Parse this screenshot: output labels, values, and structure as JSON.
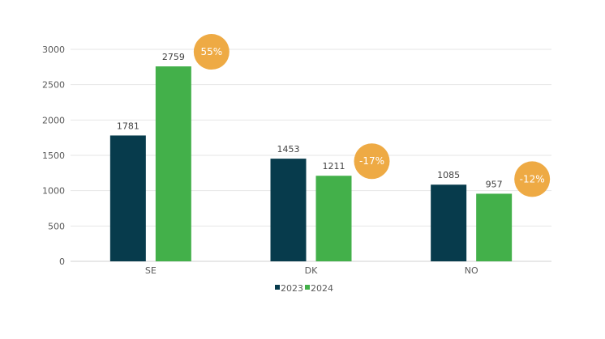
{
  "chart_data": {
    "type": "bar",
    "categories": [
      "SE",
      "DK",
      "NO"
    ],
    "series": [
      {
        "name": "2023",
        "color": "#073b4c",
        "values": [
          1781,
          1453,
          1085
        ]
      },
      {
        "name": "2024",
        "color": "#43b04a",
        "values": [
          2759,
          1211,
          957
        ]
      }
    ],
    "changes": [
      "55%",
      "-17%",
      "-12%"
    ],
    "change_color": "#eeaa44",
    "ylim": [
      0,
      3000
    ],
    "yticks": [
      0,
      500,
      1000,
      1500,
      2000,
      2500,
      3000
    ],
    "grid": true,
    "legend_position": "bottom"
  }
}
